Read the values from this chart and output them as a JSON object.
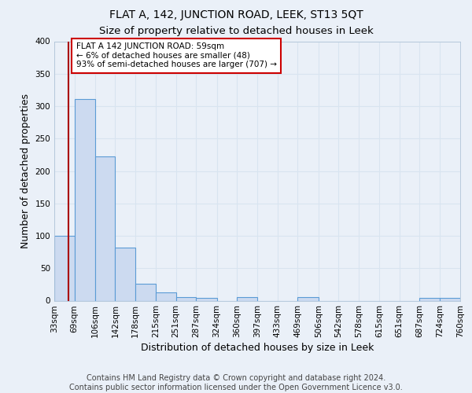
{
  "title": "FLAT A, 142, JUNCTION ROAD, LEEK, ST13 5QT",
  "subtitle": "Size of property relative to detached houses in Leek",
  "xlabel": "Distribution of detached houses by size in Leek",
  "ylabel": "Number of detached properties",
  "bin_edges": [
    33,
    69,
    106,
    142,
    178,
    215,
    251,
    287,
    324,
    360,
    397,
    433,
    469,
    506,
    542,
    578,
    615,
    651,
    687,
    724,
    760
  ],
  "bin_labels": [
    "33sqm",
    "69sqm",
    "106sqm",
    "142sqm",
    "178sqm",
    "215sqm",
    "251sqm",
    "287sqm",
    "324sqm",
    "360sqm",
    "397sqm",
    "433sqm",
    "469sqm",
    "506sqm",
    "542sqm",
    "578sqm",
    "615sqm",
    "651sqm",
    "687sqm",
    "724sqm",
    "760sqm"
  ],
  "counts": [
    100,
    311,
    222,
    82,
    26,
    13,
    5,
    4,
    0,
    6,
    0,
    0,
    5,
    0,
    0,
    0,
    0,
    0,
    4,
    4
  ],
  "bar_color": "#ccdaf0",
  "bar_edge_color": "#5b9bd5",
  "property_size": 59,
  "property_line_color": "#aa0000",
  "annotation_text": "FLAT A 142 JUNCTION ROAD: 59sqm\n← 6% of detached houses are smaller (48)\n93% of semi-detached houses are larger (707) →",
  "annotation_box_color": "#ffffff",
  "annotation_box_edge": "#cc0000",
  "ylim": [
    0,
    400
  ],
  "yticks": [
    0,
    50,
    100,
    150,
    200,
    250,
    300,
    350,
    400
  ],
  "footer_line1": "Contains HM Land Registry data © Crown copyright and database right 2024.",
  "footer_line2": "Contains public sector information licensed under the Open Government Licence v3.0.",
  "background_color": "#eaf0f8",
  "grid_color": "#d8e4f0",
  "title_fontsize": 10,
  "subtitle_fontsize": 9.5,
  "axis_label_fontsize": 9,
  "tick_fontsize": 7.5,
  "footer_fontsize": 7,
  "annotation_fontsize": 7.5
}
